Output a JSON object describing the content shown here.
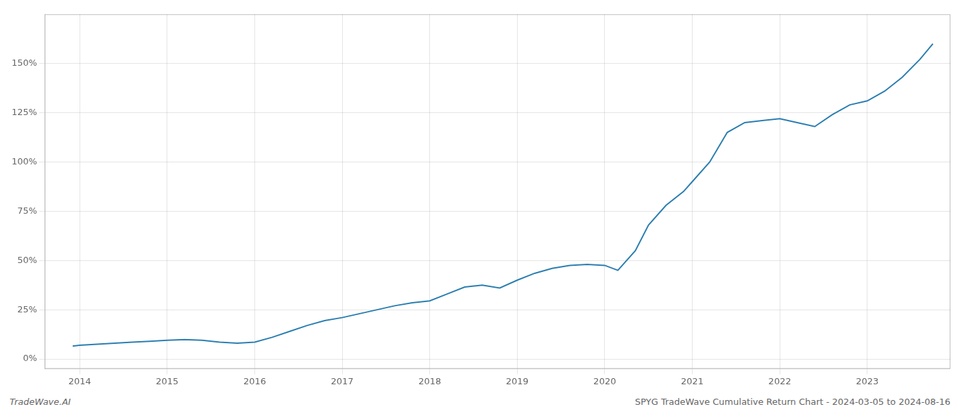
{
  "chart_data": {
    "type": "line",
    "x": [
      2013.92,
      2014.0,
      2014.2,
      2014.4,
      2014.6,
      2014.8,
      2015.0,
      2015.2,
      2015.4,
      2015.6,
      2015.8,
      2016.0,
      2016.2,
      2016.4,
      2016.6,
      2016.8,
      2017.0,
      2017.2,
      2017.4,
      2017.6,
      2017.8,
      2018.0,
      2018.2,
      2018.4,
      2018.6,
      2018.8,
      2019.0,
      2019.2,
      2019.4,
      2019.6,
      2019.8,
      2020.0,
      2020.15,
      2020.35,
      2020.5,
      2020.7,
      2020.9,
      2021.0,
      2021.2,
      2021.4,
      2021.6,
      2021.8,
      2022.0,
      2022.2,
      2022.4,
      2022.6,
      2022.8,
      2023.0,
      2023.2,
      2023.4,
      2023.6,
      2023.75
    ],
    "values": [
      6.5,
      7.0,
      7.5,
      8.0,
      8.5,
      9.0,
      9.5,
      9.8,
      9.5,
      8.5,
      8.0,
      8.5,
      11.0,
      14.0,
      17.0,
      19.5,
      21.0,
      23.0,
      25.0,
      27.0,
      28.5,
      29.5,
      33.0,
      36.5,
      37.5,
      36.0,
      40.0,
      43.5,
      46.0,
      47.5,
      48.0,
      47.5,
      45.0,
      55.0,
      68.0,
      78.0,
      85.0,
      90.0,
      100.0,
      115.0,
      120.0,
      121.0,
      122.0,
      120.0,
      118.0,
      124.0,
      129.0,
      131.0,
      136.0,
      143.0,
      152.0,
      160.0
    ],
    "color": "#2b7eb0",
    "xlim": [
      2013.6,
      2023.95
    ],
    "xticks": [
      2014,
      2015,
      2016,
      2017,
      2018,
      2019,
      2020,
      2021,
      2022,
      2023
    ],
    "ylim": [
      -5,
      175
    ],
    "yticks": [
      {
        "value": 0,
        "label": "0%"
      },
      {
        "value": 25,
        "label": "25%"
      },
      {
        "value": 50,
        "label": "50%"
      },
      {
        "value": 75,
        "label": "75%"
      },
      {
        "value": 100,
        "label": "100%"
      },
      {
        "value": 125,
        "label": "125%"
      },
      {
        "value": 150,
        "label": "150%"
      }
    ],
    "grid": true,
    "annotations": [
      "TradeWave.AI",
      "SPYG TradeWave Cumulative Return Chart - 2024-03-05 to 2024-08-16"
    ]
  }
}
